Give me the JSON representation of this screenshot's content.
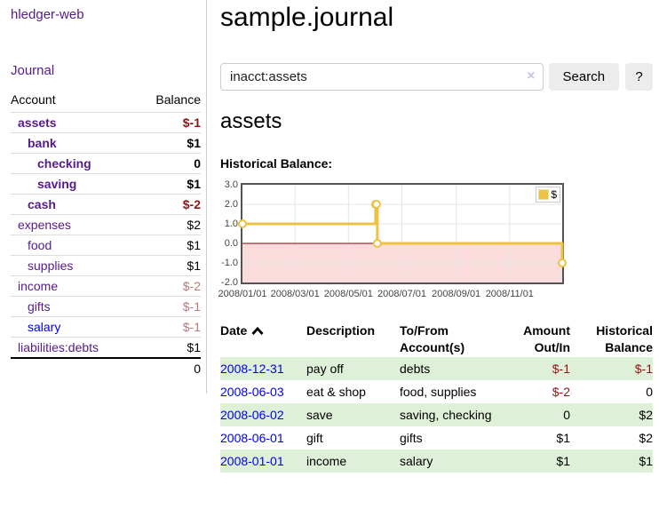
{
  "colors": {
    "link_purple": "#551a8b",
    "link_blue": "#0000ee",
    "negative": "#8f1414",
    "negative_muted": "#b87878",
    "row_green": "#dff0d8",
    "accent_gold": "#edc240",
    "chart_border": "#545454",
    "chart_grid": "#e6e6e6",
    "negative_region": "#fbdcdc",
    "zero_line": "#8b0000"
  },
  "app": {
    "brand": "hledger-web"
  },
  "sidebar": {
    "journal_link": "Journal",
    "accounts": {
      "header_account": "Account",
      "header_balance": "Balance",
      "rows": [
        {
          "name": "assets",
          "indent": 1,
          "bold": true,
          "balance": "$-1",
          "balance_class": "neg-strong"
        },
        {
          "name": "bank",
          "indent": 2,
          "bold": true,
          "balance": "$1",
          "balance_class": "pos"
        },
        {
          "name": "checking",
          "indent": 3,
          "bold": true,
          "balance": "0",
          "balance_class": "pos"
        },
        {
          "name": "saving",
          "indent": 3,
          "bold": true,
          "balance": "$1",
          "balance_class": "pos"
        },
        {
          "name": "cash",
          "indent": 2,
          "bold": true,
          "balance": "$-2",
          "balance_class": "neg-strong"
        },
        {
          "name": "expenses",
          "indent": 1,
          "bold": false,
          "balance": "$2",
          "balance_class": "pos"
        },
        {
          "name": "food",
          "indent": 2,
          "bold": false,
          "balance": "$1",
          "balance_class": "pos"
        },
        {
          "name": "supplies",
          "indent": 2,
          "bold": false,
          "balance": "$1",
          "balance_class": "pos"
        },
        {
          "name": "income",
          "indent": 1,
          "bold": false,
          "balance": "$-2",
          "balance_class": "neg-muted"
        },
        {
          "name": "gifts",
          "indent": 2,
          "bold": false,
          "balance": "$-1",
          "balance_class": "neg-muted"
        },
        {
          "name": "salary",
          "indent": 2,
          "bold": false,
          "balance": "$-1",
          "balance_class": "neg-muted",
          "link_color": "blue"
        },
        {
          "name": "liabilities:debts",
          "indent": 1,
          "bold": false,
          "balance": "$1",
          "balance_class": "pos"
        }
      ],
      "total": "0"
    }
  },
  "main": {
    "title": "sample.journal",
    "search": {
      "value": "inacct:assets",
      "clear_icon": "×",
      "search_button": "Search",
      "help_button": "?"
    },
    "account_heading": "assets",
    "chart_label": "Historical Balance:",
    "register": {
      "headers": {
        "date": "Date",
        "description": "Description",
        "tofrom1": "To/From",
        "tofrom2": "Account(s)",
        "amount1": "Amount",
        "amount2": "Out/In",
        "balance1": "Historical",
        "balance2": "Balance"
      },
      "rows": [
        {
          "date": "2008-12-31",
          "description": "pay off",
          "accounts": "debts",
          "amount": "$-1",
          "balance": "$-1"
        },
        {
          "date": "2008-06-03",
          "description": "eat & shop",
          "accounts": "food, supplies",
          "amount": "$-2",
          "balance": "0"
        },
        {
          "date": "2008-06-02",
          "description": "save",
          "accounts": "saving, checking",
          "amount": "0",
          "balance": "$2"
        },
        {
          "date": "2008-06-01",
          "description": "gift",
          "accounts": "gifts",
          "amount": "$1",
          "balance": "$2"
        },
        {
          "date": "2008-01-01",
          "description": "income",
          "accounts": "salary",
          "amount": "$1",
          "balance": "$1"
        }
      ]
    }
  },
  "chart_data": {
    "type": "line",
    "step": true,
    "title": "Historical Balance",
    "series": [
      {
        "name": "$",
        "color": "#edc240",
        "points": [
          {
            "date": "2008-01-01",
            "value": 1
          },
          {
            "date": "2008-06-01",
            "value": 2
          },
          {
            "date": "2008-06-02",
            "value": 2
          },
          {
            "date": "2008-06-03",
            "value": 0
          },
          {
            "date": "2008-12-31",
            "value": -1
          }
        ]
      }
    ],
    "xlim": [
      "2008-01-01",
      "2008-12-31"
    ],
    "ylim": [
      -2,
      3
    ],
    "y_ticks": [
      {
        "label": "3.0",
        "value": 3
      },
      {
        "label": "2.0",
        "value": 2
      },
      {
        "label": "1.0",
        "value": 1
      },
      {
        "label": "0.0",
        "value": 0
      },
      {
        "label": "-1.0",
        "value": -1
      },
      {
        "label": "-2.0",
        "value": -2
      }
    ],
    "x_ticks": [
      {
        "label": "2008/01/01",
        "date": "2008-01-01"
      },
      {
        "label": "2008/03/01",
        "date": "2008-03-01"
      },
      {
        "label": "2008/05/01",
        "date": "2008-05-01"
      },
      {
        "label": "2008/07/01",
        "date": "2008-07-01"
      },
      {
        "label": "2008/09/01",
        "date": "2008-09-01"
      },
      {
        "label": "2008/11/01",
        "date": "2008-11-01"
      }
    ],
    "legend": {
      "label": "$",
      "position": "top-right"
    },
    "grid": true
  }
}
